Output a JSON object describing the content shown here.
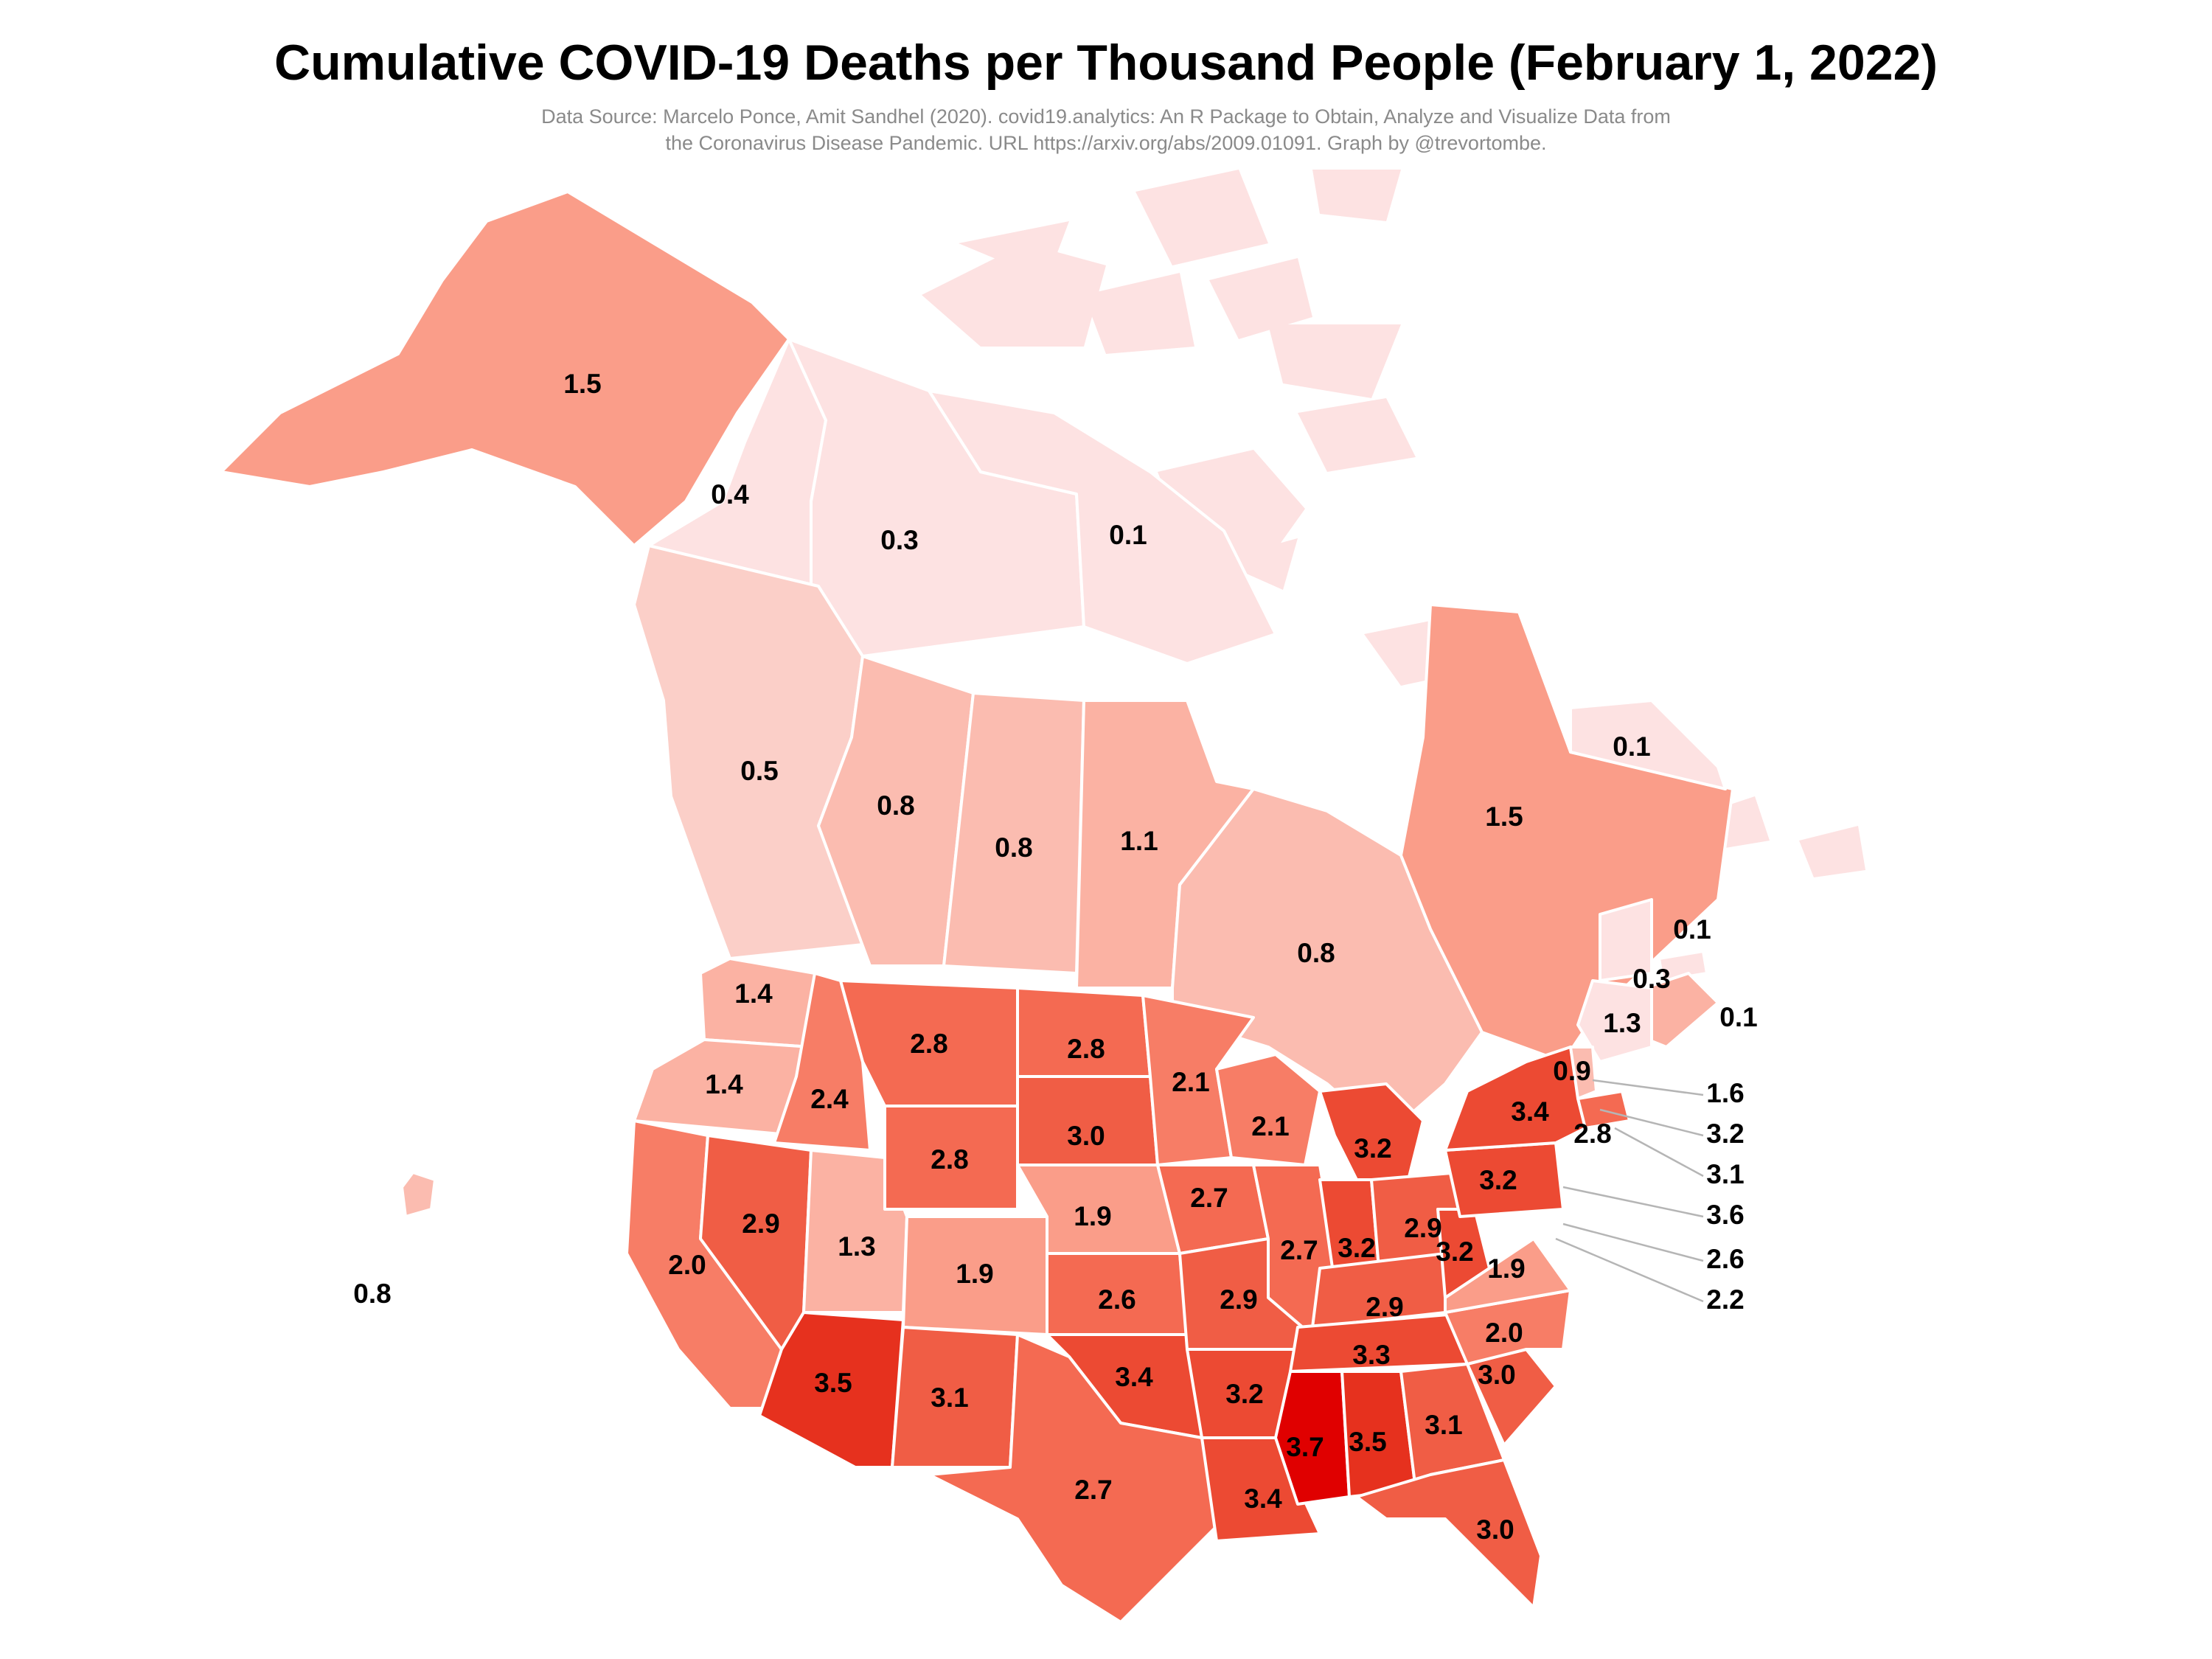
{
  "title": "Cumulative COVID-19 Deaths per Thousand People (February 1, 2022)",
  "source_line1": "Data Source: Marcelo Ponce, Amit Sandhel (2020). covid19.analytics: An R Package to Obtain, Analyze and Visualize Data from",
  "source_line2": "the Coronavirus Disease Pandemic. URL https://arxiv.org/abs/2009.01091. Graph by @trevortombe.",
  "color_scale": {
    "low": "#fde2e2",
    "high": "#e00000",
    "steps": [
      {
        "value": 0.1,
        "color": "#fde2e2"
      },
      {
        "value": 0.5,
        "color": "#fbcfc8"
      },
      {
        "value": 0.8,
        "color": "#fbbcb0"
      },
      {
        "value": 1.1,
        "color": "#fbb2a3"
      },
      {
        "value": 1.5,
        "color": "#fa9d89"
      },
      {
        "value": 2.0,
        "color": "#f77d66"
      },
      {
        "value": 2.5,
        "color": "#f46a52"
      },
      {
        "value": 2.9,
        "color": "#f05d45"
      },
      {
        "value": 3.2,
        "color": "#ec4a33"
      },
      {
        "value": 3.5,
        "color": "#e6311e"
      },
      {
        "value": 3.7,
        "color": "#e00000"
      }
    ]
  },
  "regions": [
    {
      "value": "1.5",
      "v": 1.5
    },
    {
      "value": "0.4",
      "v": 0.4
    },
    {
      "value": "0.3",
      "v": 0.3
    },
    {
      "value": "0.1",
      "v": 0.1
    },
    {
      "value": "0.5",
      "v": 0.5
    },
    {
      "value": "0.8",
      "v": 0.8
    },
    {
      "value": "0.8",
      "v": 0.8
    },
    {
      "value": "1.1",
      "v": 1.1
    },
    {
      "value": "0.8",
      "v": 0.8
    },
    {
      "value": "1.5",
      "v": 1.5
    },
    {
      "value": "0.1",
      "v": 0.1
    },
    {
      "value": "0.1",
      "v": 0.1
    },
    {
      "value": "0.3",
      "v": 0.3
    },
    {
      "value": "1.3",
      "v": 1.3
    },
    {
      "value": "0.1",
      "v": 0.1
    },
    {
      "value": "0.8",
      "v": 0.8
    },
    {
      "value": "1.4",
      "v": 1.4
    },
    {
      "value": "1.4",
      "v": 1.4
    },
    {
      "value": "2.0",
      "v": 2.0
    },
    {
      "value": "2.4",
      "v": 2.4
    },
    {
      "value": "2.9",
      "v": 2.9
    },
    {
      "value": "1.3",
      "v": 1.3
    },
    {
      "value": "3.5",
      "v": 3.5
    },
    {
      "value": "2.8",
      "v": 2.8
    },
    {
      "value": "2.8",
      "v": 2.8
    },
    {
      "value": "1.9",
      "v": 1.9
    },
    {
      "value": "3.1",
      "v": 3.1
    },
    {
      "value": "2.8",
      "v": 2.8
    },
    {
      "value": "3.0",
      "v": 3.0
    },
    {
      "value": "1.9",
      "v": 1.9
    },
    {
      "value": "2.6",
      "v": 2.6
    },
    {
      "value": "3.4",
      "v": 3.4
    },
    {
      "value": "2.7",
      "v": 2.7
    },
    {
      "value": "2.1",
      "v": 2.1
    },
    {
      "value": "2.7",
      "v": 2.7
    },
    {
      "value": "2.9",
      "v": 2.9
    },
    {
      "value": "3.2",
      "v": 3.2
    },
    {
      "value": "3.4",
      "v": 3.4
    },
    {
      "value": "2.1",
      "v": 2.1
    },
    {
      "value": "2.7",
      "v": 2.7
    },
    {
      "value": "3.2",
      "v": 3.2
    },
    {
      "value": "3.2",
      "v": 3.2
    },
    {
      "value": "2.9",
      "v": 2.9
    },
    {
      "value": "2.9",
      "v": 2.9
    },
    {
      "value": "3.3",
      "v": 3.3
    },
    {
      "value": "3.7",
      "v": 3.7
    },
    {
      "value": "3.5",
      "v": 3.5
    },
    {
      "value": "3.1",
      "v": 3.1
    },
    {
      "value": "3.0",
      "v": 3.0
    },
    {
      "value": "3.0",
      "v": 3.0
    },
    {
      "value": "2.0",
      "v": 2.0
    },
    {
      "value": "3.2",
      "v": 3.2
    },
    {
      "value": "1.9",
      "v": 1.9
    },
    {
      "value": "3.2",
      "v": 3.2
    },
    {
      "value": "3.4",
      "v": 3.4
    },
    {
      "value": "2.8",
      "v": 2.8
    },
    {
      "value": "0.9",
      "v": 0.9
    }
  ],
  "leader_labels": [
    {
      "value": "1.6",
      "v": 1.6
    },
    {
      "value": "3.2",
      "v": 3.2
    },
    {
      "value": "3.1",
      "v": 3.1
    },
    {
      "value": "3.6",
      "v": 3.6
    },
    {
      "value": "2.6",
      "v": 2.6
    },
    {
      "value": "2.2",
      "v": 2.2
    }
  ]
}
